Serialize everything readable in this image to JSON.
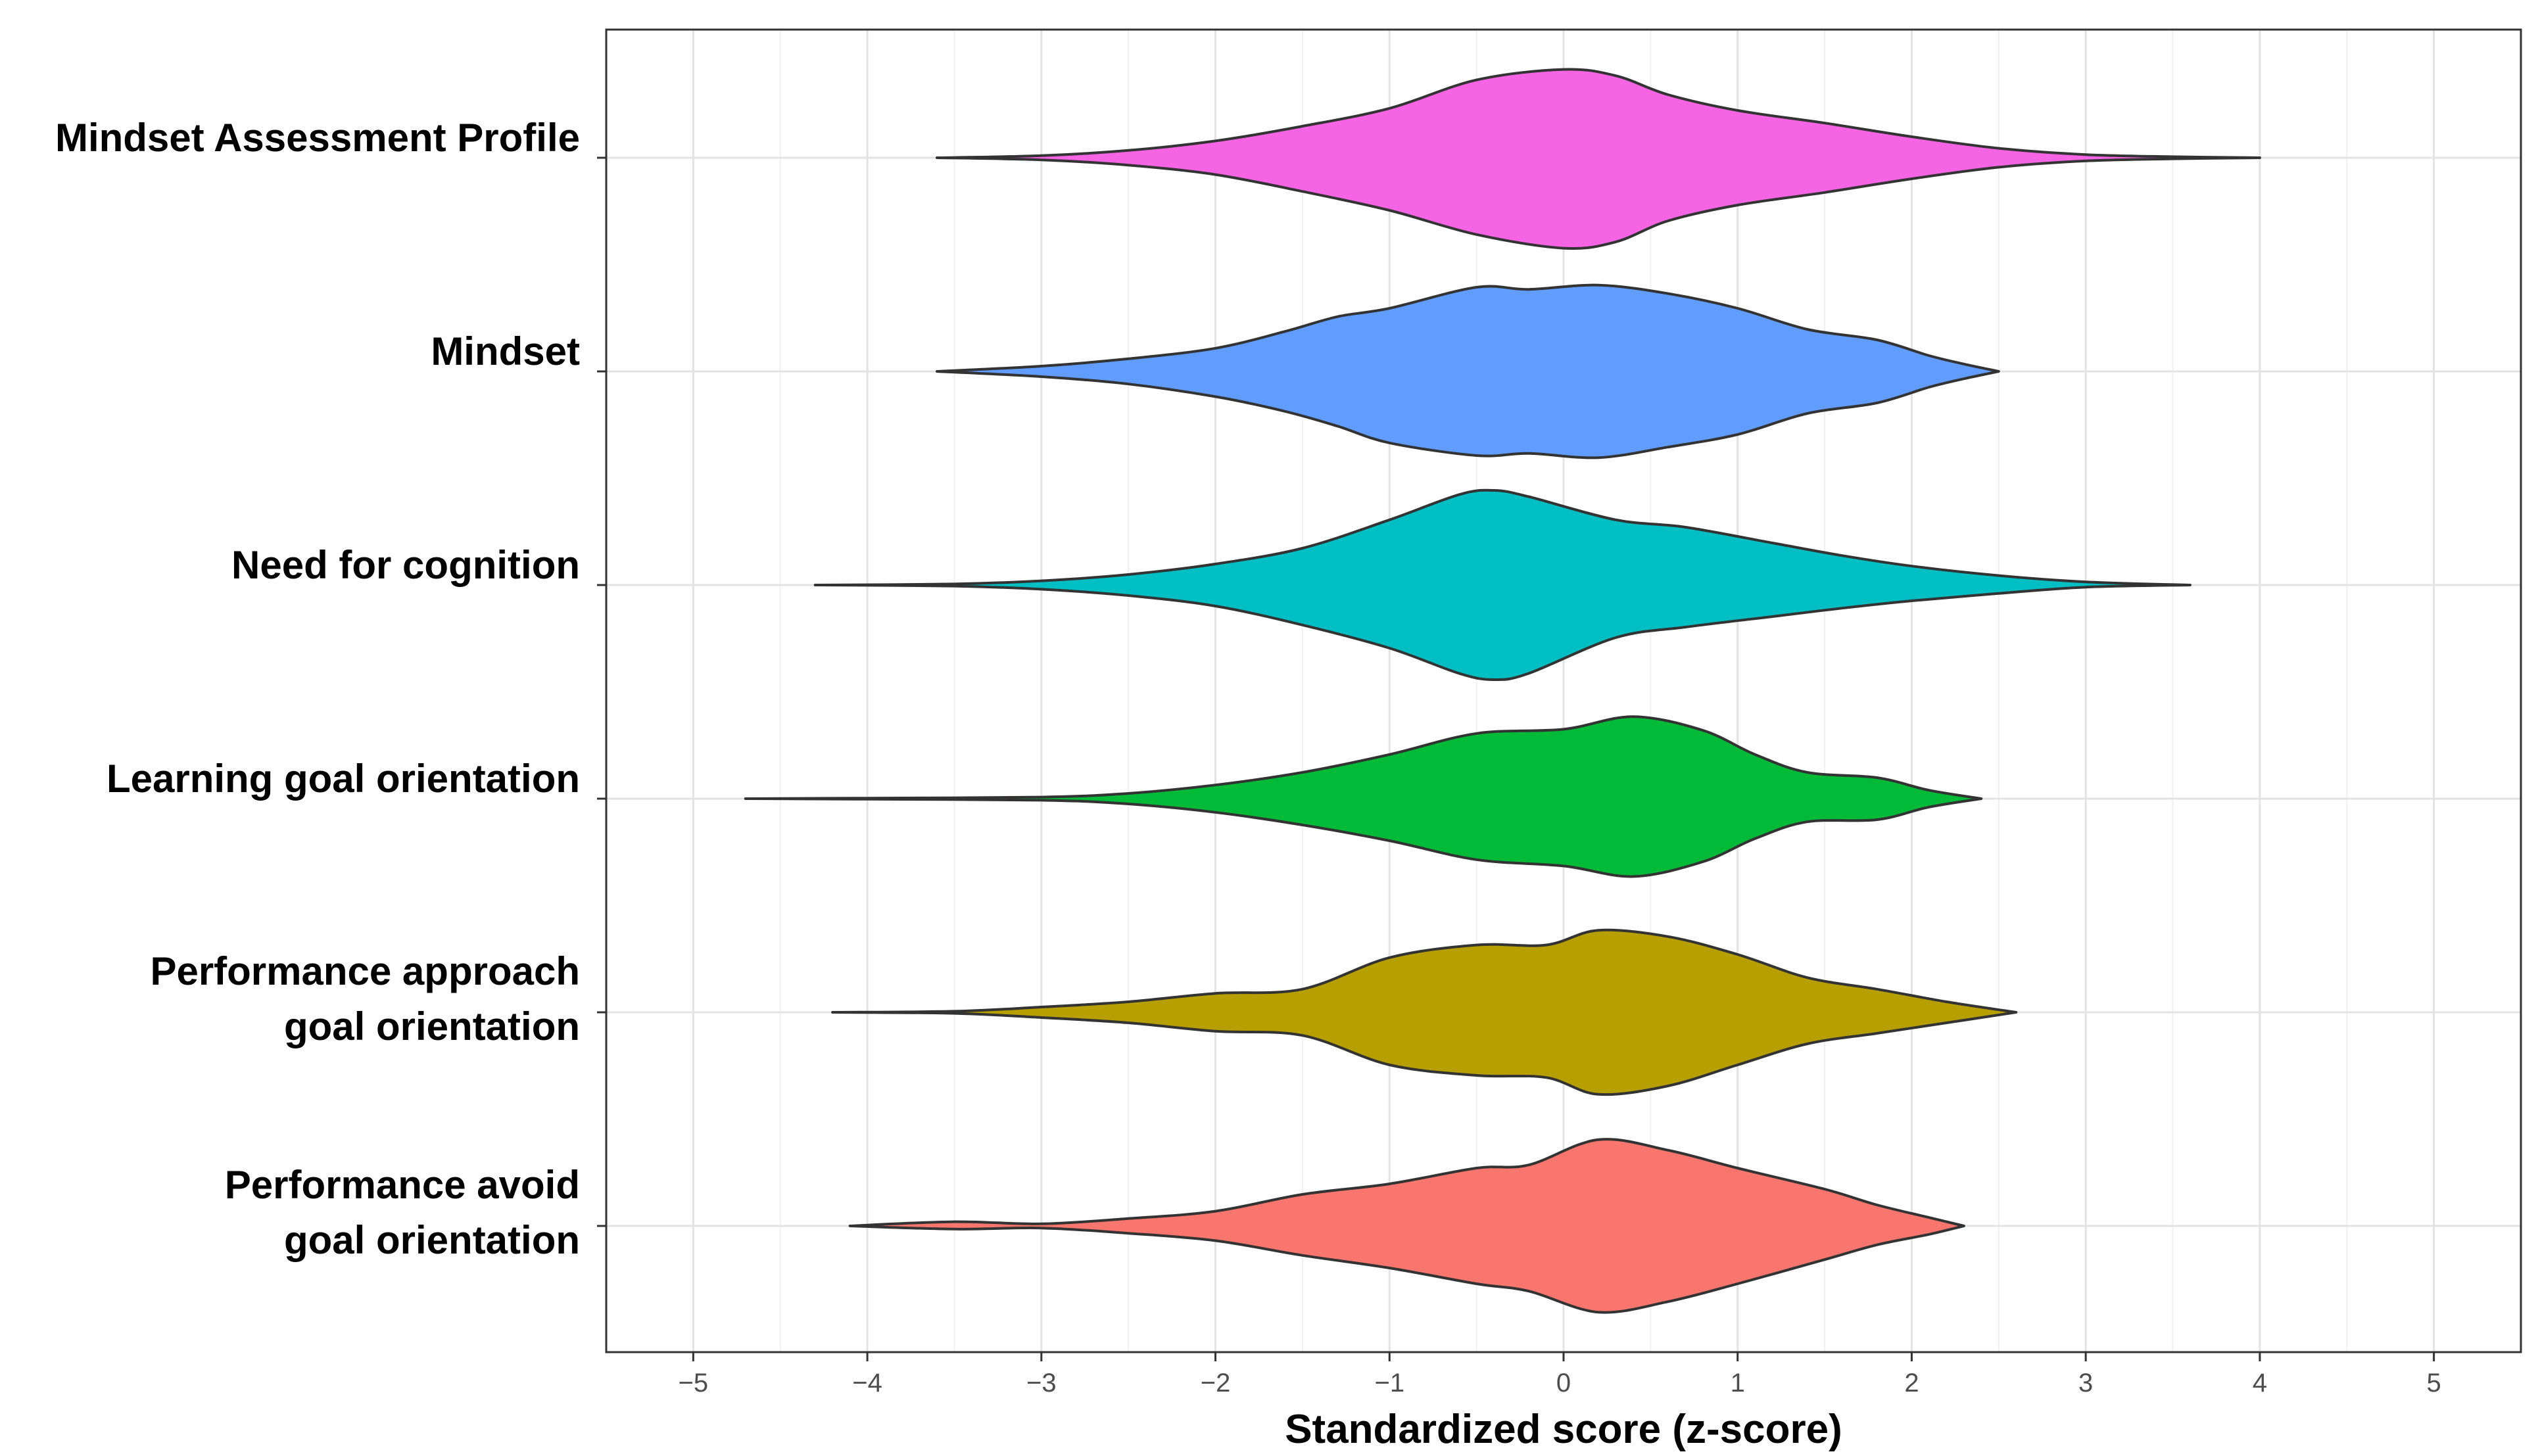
{
  "chart_data": {
    "type": "violin",
    "orientation": "horizontal",
    "xlabel": "Standardized score (z-score)",
    "xlim": [
      -5.5,
      5.5
    ],
    "x_ticks": [
      -5,
      -4,
      -3,
      -2,
      -1,
      0,
      1,
      2,
      3,
      4,
      5
    ],
    "x_tick_labels": [
      "−5",
      "−4",
      "−3",
      "−2",
      "−1",
      "0",
      "1",
      "2",
      "3",
      "4",
      "5"
    ],
    "grid": true,
    "series": [
      {
        "name": "Mindset Assessment Profile",
        "label_lines": [
          "Mindset Assessment Profile"
        ],
        "color": "#F564E3",
        "min": -3.6,
        "max": 4.0,
        "density_x": [
          -3.6,
          -3.0,
          -2.5,
          -2.0,
          -1.5,
          -1.0,
          -0.5,
          0.0,
          0.3,
          0.6,
          1.0,
          1.5,
          2.0,
          2.5,
          3.0,
          3.5,
          4.0
        ],
        "upper_width": [
          0.0,
          0.02,
          0.07,
          0.16,
          0.3,
          0.47,
          0.74,
          0.84,
          0.78,
          0.6,
          0.45,
          0.33,
          0.2,
          0.09,
          0.03,
          0.01,
          0.0
        ],
        "lower_width": [
          0.0,
          0.02,
          0.07,
          0.16,
          0.32,
          0.5,
          0.73,
          0.86,
          0.8,
          0.6,
          0.45,
          0.33,
          0.2,
          0.09,
          0.03,
          0.01,
          0.0
        ]
      },
      {
        "name": "Mindset",
        "label_lines": [
          "Mindset"
        ],
        "color": "#619CFF",
        "min": -3.6,
        "max": 2.5,
        "density_x": [
          -3.6,
          -3.0,
          -2.5,
          -2.0,
          -1.6,
          -1.3,
          -1.0,
          -0.5,
          -0.2,
          0.2,
          0.6,
          1.0,
          1.4,
          1.8,
          2.1,
          2.3,
          2.5
        ],
        "upper_width": [
          0.0,
          0.05,
          0.12,
          0.22,
          0.38,
          0.52,
          0.6,
          0.8,
          0.78,
          0.82,
          0.74,
          0.6,
          0.4,
          0.3,
          0.15,
          0.07,
          0.0
        ],
        "lower_width": [
          0.0,
          0.05,
          0.12,
          0.24,
          0.38,
          0.52,
          0.68,
          0.8,
          0.78,
          0.82,
          0.72,
          0.6,
          0.4,
          0.3,
          0.15,
          0.07,
          0.0
        ]
      },
      {
        "name": "Need for cognition",
        "label_lines": [
          "Need for cognition"
        ],
        "color": "#00BFC4",
        "min": -4.3,
        "max": 3.6,
        "density_x": [
          -4.3,
          -3.5,
          -3.0,
          -2.5,
          -2.0,
          -1.5,
          -1.0,
          -0.6,
          -0.4,
          -0.2,
          0.3,
          0.7,
          1.2,
          1.6,
          2.0,
          2.5,
          3.0,
          3.6
        ],
        "upper_width": [
          0.0,
          0.01,
          0.04,
          0.1,
          0.2,
          0.35,
          0.62,
          0.86,
          0.9,
          0.84,
          0.62,
          0.55,
          0.4,
          0.28,
          0.18,
          0.09,
          0.03,
          0.0
        ],
        "lower_width": [
          0.0,
          0.01,
          0.04,
          0.1,
          0.2,
          0.38,
          0.6,
          0.84,
          0.9,
          0.84,
          0.5,
          0.4,
          0.3,
          0.22,
          0.15,
          0.08,
          0.02,
          0.0
        ]
      },
      {
        "name": "Learning goal orientation",
        "label_lines": [
          "Learning goal orientation"
        ],
        "color": "#00BA38",
        "min": -4.7,
        "max": 2.4,
        "density_x": [
          -4.7,
          -4.0,
          -3.0,
          -2.5,
          -2.0,
          -1.5,
          -1.0,
          -0.5,
          0.0,
          0.4,
          0.8,
          1.1,
          1.4,
          1.8,
          2.1,
          2.4
        ],
        "upper_width": [
          0.0,
          0.005,
          0.015,
          0.05,
          0.13,
          0.25,
          0.42,
          0.62,
          0.66,
          0.78,
          0.65,
          0.42,
          0.25,
          0.2,
          0.08,
          0.0
        ],
        "lower_width": [
          0.0,
          0.005,
          0.015,
          0.05,
          0.13,
          0.25,
          0.4,
          0.58,
          0.64,
          0.74,
          0.6,
          0.38,
          0.22,
          0.2,
          0.08,
          0.0
        ]
      },
      {
        "name": "Performance approach goal orientation",
        "label_lines": [
          "Performance approach",
          "goal orientation"
        ],
        "color": "#B79F00",
        "min": -4.2,
        "max": 2.6,
        "density_x": [
          -4.2,
          -3.5,
          -3.0,
          -2.5,
          -2.0,
          -1.5,
          -1.0,
          -0.5,
          -0.1,
          0.2,
          0.6,
          1.0,
          1.4,
          1.8,
          2.2,
          2.6
        ],
        "upper_width": [
          0.0,
          0.01,
          0.05,
          0.1,
          0.18,
          0.22,
          0.52,
          0.64,
          0.64,
          0.78,
          0.72,
          0.55,
          0.33,
          0.22,
          0.1,
          0.0
        ],
        "lower_width": [
          0.0,
          0.01,
          0.05,
          0.1,
          0.18,
          0.22,
          0.5,
          0.6,
          0.62,
          0.78,
          0.7,
          0.5,
          0.3,
          0.2,
          0.1,
          0.0
        ]
      },
      {
        "name": "Performance avoid goal orientation",
        "label_lines": [
          "Performance avoid",
          "goal orientation"
        ],
        "color": "#F8766D",
        "min": -4.1,
        "max": 2.3,
        "density_x": [
          -4.1,
          -3.5,
          -3.0,
          -2.5,
          -2.0,
          -1.5,
          -1.0,
          -0.5,
          -0.2,
          0.2,
          0.6,
          1.0,
          1.5,
          1.8,
          2.1,
          2.3
        ],
        "upper_width": [
          0.0,
          0.04,
          0.02,
          0.07,
          0.14,
          0.3,
          0.4,
          0.55,
          0.58,
          0.82,
          0.72,
          0.55,
          0.35,
          0.2,
          0.08,
          0.0
        ],
        "lower_width": [
          0.0,
          0.03,
          0.02,
          0.07,
          0.14,
          0.28,
          0.4,
          0.55,
          0.62,
          0.82,
          0.72,
          0.55,
          0.32,
          0.18,
          0.08,
          0.0
        ]
      }
    ]
  }
}
